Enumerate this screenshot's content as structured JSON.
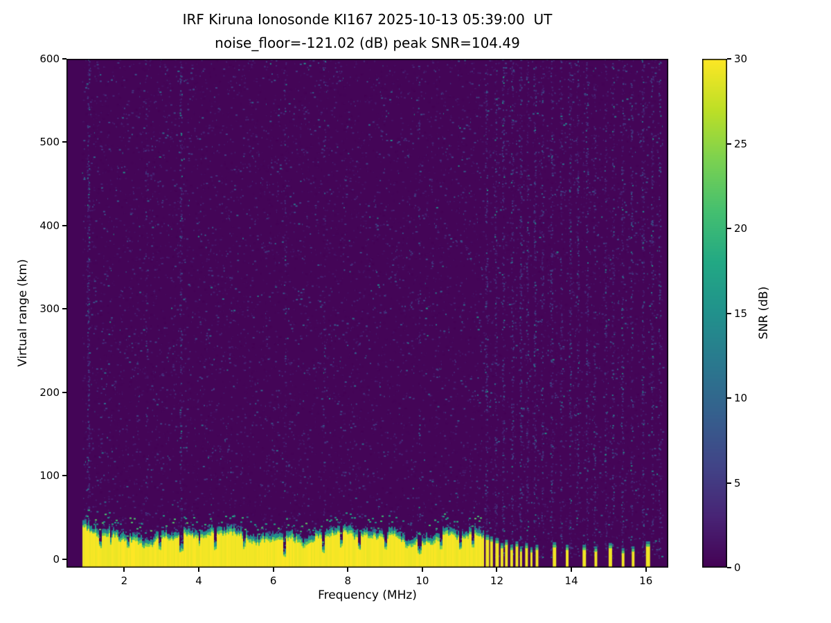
{
  "chart_data": {
    "type": "heatmap",
    "title": "IRF Kiruna Ionosonde KI167 2025-10-13 05:39:00  UT",
    "subtitle": "noise_floor=-121.02 (dB) peak SNR=104.49",
    "xlabel": "Frequency (MHz)",
    "ylabel": "Virtual range (km)",
    "xlim": [
      0.45,
      16.6
    ],
    "ylim": [
      -10,
      600
    ],
    "xticks": [
      2,
      4,
      6,
      8,
      10,
      12,
      14,
      16
    ],
    "yticks": [
      0,
      100,
      200,
      300,
      400,
      500,
      600
    ],
    "colorbar": {
      "label": "SNR (dB)",
      "min": 0,
      "max": 30,
      "ticks": [
        0,
        5,
        10,
        15,
        20,
        25,
        30
      ]
    },
    "colormap": {
      "name": "viridis",
      "stops": [
        [
          0,
          "#440154"
        ],
        [
          0.1,
          "#482475"
        ],
        [
          0.2,
          "#414487"
        ],
        [
          0.3,
          "#355f8d"
        ],
        [
          0.4,
          "#2a788e"
        ],
        [
          0.5,
          "#21918c"
        ],
        [
          0.6,
          "#22a884"
        ],
        [
          0.7,
          "#44bf70"
        ],
        [
          0.8,
          "#7ad151"
        ],
        [
          0.9,
          "#bddf26"
        ],
        [
          1,
          "#fde725"
        ]
      ]
    },
    "noise": {
      "speckle_count": 11000,
      "mean_db": 2.6,
      "data_freq_min": 0.86,
      "data_freq_max": 16.45
    },
    "ground_echo": {
      "freq_start": 0.88,
      "freq_end": 11.62,
      "mean_top_km": 30,
      "notches": [
        [
          1.35,
          14,
          0.04
        ],
        [
          1.62,
          16,
          0.03
        ],
        [
          2.08,
          12,
          0.04
        ],
        [
          2.5,
          13,
          0.03
        ],
        [
          2.95,
          10,
          0.04
        ],
        [
          3.52,
          8,
          0.05
        ],
        [
          4.0,
          14,
          0.03
        ],
        [
          4.42,
          11,
          0.04
        ],
        [
          5.2,
          13,
          0.03
        ],
        [
          5.6,
          15,
          0.03
        ],
        [
          6.28,
          3,
          0.05
        ],
        [
          6.8,
          14,
          0.03
        ],
        [
          7.32,
          7,
          0.04
        ],
        [
          7.8,
          14,
          0.03
        ],
        [
          8.3,
          11,
          0.03
        ],
        [
          9.0,
          12,
          0.04
        ],
        [
          9.55,
          13,
          0.03
        ],
        [
          9.92,
          6,
          0.05
        ],
        [
          10.48,
          10,
          0.04
        ],
        [
          11.0,
          12,
          0.03
        ],
        [
          11.35,
          13,
          0.03
        ]
      ]
    },
    "echo_stripes": [
      {
        "f": 11.7,
        "h": 24,
        "w": 5
      },
      {
        "f": 11.82,
        "h": 22,
        "w": 4
      },
      {
        "f": 11.96,
        "h": 20,
        "w": 5
      },
      {
        "f": 12.1,
        "h": 14,
        "w": 4
      },
      {
        "f": 12.22,
        "h": 18,
        "w": 4
      },
      {
        "f": 12.36,
        "h": 12,
        "w": 4
      },
      {
        "f": 12.5,
        "h": 16,
        "w": 4
      },
      {
        "f": 12.62,
        "h": 10,
        "w": 3
      },
      {
        "f": 12.76,
        "h": 14,
        "w": 4
      },
      {
        "f": 12.9,
        "h": 9,
        "w": 3
      },
      {
        "f": 13.04,
        "h": 12,
        "w": 4
      },
      {
        "f": 13.5,
        "h": 15,
        "w": 5
      },
      {
        "f": 13.85,
        "h": 12,
        "w": 4
      },
      {
        "f": 14.3,
        "h": 12,
        "w": 5
      },
      {
        "f": 14.62,
        "h": 10,
        "w": 4
      },
      {
        "f": 15.0,
        "h": 14,
        "w": 5
      },
      {
        "f": 15.35,
        "h": 8,
        "w": 4
      },
      {
        "f": 15.62,
        "h": 10,
        "w": 4
      },
      {
        "f": 16.0,
        "h": 16,
        "w": 6
      }
    ],
    "noise_columns": [
      {
        "f": 1.02,
        "s": 0.5
      },
      {
        "f": 2.58,
        "s": 0.15
      },
      {
        "f": 3.5,
        "s": 0.35
      },
      {
        "f": 6.3,
        "s": 0.15
      },
      {
        "f": 7.35,
        "s": 0.12
      },
      {
        "f": 9.9,
        "s": 0.12
      },
      {
        "f": 11.7,
        "s": 0.4
      },
      {
        "f": 11.95,
        "s": 0.3
      },
      {
        "f": 12.15,
        "s": 0.35
      },
      {
        "f": 12.4,
        "s": 0.3
      },
      {
        "f": 12.62,
        "s": 0.35
      },
      {
        "f": 12.8,
        "s": 0.3
      },
      {
        "f": 13.0,
        "s": 0.35
      },
      {
        "f": 13.2,
        "s": 0.25
      },
      {
        "f": 13.45,
        "s": 0.3
      },
      {
        "f": 13.7,
        "s": 0.25
      },
      {
        "f": 13.95,
        "s": 0.35
      },
      {
        "f": 14.15,
        "s": 0.25
      },
      {
        "f": 14.4,
        "s": 0.3
      },
      {
        "f": 14.6,
        "s": 0.25
      },
      {
        "f": 14.9,
        "s": 0.3
      },
      {
        "f": 15.1,
        "s": 0.25
      },
      {
        "f": 15.35,
        "s": 0.3
      },
      {
        "f": 15.6,
        "s": 0.25
      },
      {
        "f": 15.9,
        "s": 0.35
      },
      {
        "f": 16.15,
        "s": 0.3
      },
      {
        "f": 16.35,
        "s": 0.25
      }
    ]
  }
}
